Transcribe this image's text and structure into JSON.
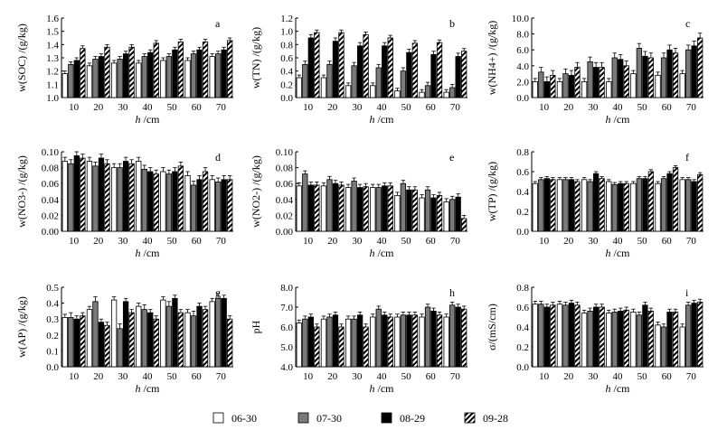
{
  "chart_data": {
    "type": "bar",
    "categories": [
      "10",
      "20",
      "30",
      "40",
      "50",
      "60",
      "70"
    ],
    "xlabel_var": "h",
    "xlabel_unit": "/cm",
    "series_names": [
      "06-30",
      "07-30",
      "08-29",
      "09-28"
    ],
    "panels": [
      {
        "letter": "a",
        "ylabel": "w(SOC) /(g/kg)",
        "ylim": [
          1.0,
          1.6
        ],
        "yticks": [
          "1.0",
          "1.1",
          "1.2",
          "1.3",
          "1.4",
          "1.5",
          "1.6"
        ],
        "series": [
          {
            "name": "06-30",
            "values": [
              1.18,
              1.24,
              1.26,
              1.26,
              1.28,
              1.28,
              1.31
            ]
          },
          {
            "name": "07-30",
            "values": [
              1.25,
              1.29,
              1.29,
              1.31,
              1.31,
              1.33,
              1.33
            ]
          },
          {
            "name": "08-29",
            "values": [
              1.28,
              1.31,
              1.33,
              1.34,
              1.36,
              1.36,
              1.36
            ]
          },
          {
            "name": "09-28",
            "values": [
              1.37,
              1.38,
              1.38,
              1.41,
              1.42,
              1.42,
              1.43
            ]
          }
        ],
        "errors": [
          0.02,
          0.02,
          0.02,
          0.02
        ]
      },
      {
        "letter": "b",
        "ylabel": "w(TN) /(g/kg)",
        "ylim": [
          0.0,
          1.2
        ],
        "yticks": [
          "0.0",
          "0.2",
          "0.4",
          "0.6",
          "0.8",
          "1.0",
          "1.2"
        ],
        "series": [
          {
            "name": "06-30",
            "values": [
              0.3,
              0.3,
              0.18,
              0.18,
              0.1,
              0.08,
              0.08
            ]
          },
          {
            "name": "07-30",
            "values": [
              0.5,
              0.5,
              0.48,
              0.45,
              0.4,
              0.18,
              0.15
            ]
          },
          {
            "name": "08-29",
            "values": [
              0.9,
              0.85,
              0.78,
              0.78,
              0.68,
              0.65,
              0.62
            ]
          },
          {
            "name": "09-28",
            "values": [
              0.98,
              0.98,
              0.95,
              0.9,
              0.82,
              0.83,
              0.7
            ]
          }
        ],
        "errors": [
          0.04,
          0.05,
          0.05,
          0.04
        ]
      },
      {
        "letter": "c",
        "ylabel": "w(NH4+) /(g/kg)",
        "ylim": [
          0.0,
          10.0
        ],
        "yticks": [
          "0.0",
          "2.0",
          "4.0",
          "6.0",
          "8.0",
          "10.0"
        ],
        "series": [
          {
            "name": "06-30",
            "values": [
              2.0,
              2.0,
              2.0,
              2.0,
              3.0,
              2.8,
              3.0
            ]
          },
          {
            "name": "07-30",
            "values": [
              3.2,
              3.0,
              4.5,
              5.0,
              6.2,
              5.0,
              6.0
            ]
          },
          {
            "name": "08-29",
            "values": [
              2.0,
              2.8,
              3.8,
              4.8,
              5.2,
              6.0,
              6.5
            ]
          },
          {
            "name": "09-28",
            "values": [
              2.8,
              3.8,
              3.8,
              4.0,
              5.0,
              5.6,
              7.5
            ]
          }
        ],
        "errors": [
          0.4,
          0.6,
          0.6,
          0.6
        ]
      },
      {
        "letter": "d",
        "ylabel": "w(NO3-) /(g/kg)",
        "ylim": [
          0.0,
          0.1
        ],
        "yticks": [
          "0.00",
          "0.02",
          "0.04",
          "0.06",
          "0.08",
          "0.10"
        ],
        "series": [
          {
            "name": "06-30",
            "values": [
              0.088,
              0.088,
              0.08,
              0.088,
              0.075,
              0.07,
              0.065
            ]
          },
          {
            "name": "07-30",
            "values": [
              0.085,
              0.082,
              0.08,
              0.078,
              0.072,
              0.058,
              0.062
            ]
          },
          {
            "name": "08-29",
            "values": [
              0.095,
              0.092,
              0.088,
              0.075,
              0.075,
              0.065,
              0.065
            ]
          },
          {
            "name": "09-28",
            "values": [
              0.092,
              0.085,
              0.085,
              0.072,
              0.082,
              0.075,
              0.065
            ]
          }
        ],
        "errors": [
          0.005,
          0.005,
          0.005,
          0.005
        ]
      },
      {
        "letter": "e",
        "ylabel": "w(NO2-) /(g/kg)",
        "ylim": [
          0.0,
          0.1
        ],
        "yticks": [
          "0.00",
          "0.02",
          "0.04",
          "0.06",
          "0.08",
          "0.10"
        ],
        "series": [
          {
            "name": "06-30",
            "values": [
              0.057,
              0.057,
              0.055,
              0.055,
              0.045,
              0.042,
              0.037
            ]
          },
          {
            "name": "07-30",
            "values": [
              0.072,
              0.065,
              0.063,
              0.055,
              0.06,
              0.052,
              0.04
            ]
          },
          {
            "name": "08-29",
            "values": [
              0.058,
              0.06,
              0.055,
              0.057,
              0.052,
              0.042,
              0.043
            ]
          },
          {
            "name": "09-28",
            "values": [
              0.058,
              0.058,
              0.056,
              0.057,
              0.052,
              0.045,
              0.016
            ]
          }
        ],
        "errors": [
          0.004,
          0.004,
          0.004,
          0.004
        ]
      },
      {
        "letter": "f",
        "ylabel": "w(TP) /(g/kg)",
        "ylim": [
          0.0,
          0.8
        ],
        "yticks": [
          "0.0",
          "0.2",
          "0.4",
          "0.6",
          "0.8"
        ],
        "series": [
          {
            "name": "06-30",
            "values": [
              0.48,
              0.52,
              0.52,
              0.5,
              0.48,
              0.48,
              0.52
            ]
          },
          {
            "name": "07-30",
            "values": [
              0.52,
              0.52,
              0.5,
              0.47,
              0.53,
              0.53,
              0.52
            ]
          },
          {
            "name": "08-29",
            "values": [
              0.53,
              0.52,
              0.58,
              0.48,
              0.53,
              0.58,
              0.5
            ]
          },
          {
            "name": "09-28",
            "values": [
              0.52,
              0.5,
              0.53,
              0.48,
              0.6,
              0.64,
              0.57
            ]
          }
        ],
        "errors": [
          0.02,
          0.02,
          0.02,
          0.02
        ]
      },
      {
        "letter": "g",
        "ylabel": "w(AP) /(g/kg)",
        "ylim": [
          0.0,
          0.5
        ],
        "yticks": [
          "0.0",
          "0.1",
          "0.2",
          "0.3",
          "0.4",
          "0.5"
        ],
        "series": [
          {
            "name": "06-30",
            "values": [
              0.31,
              0.36,
              0.42,
              0.38,
              0.42,
              0.34,
              0.41
            ]
          },
          {
            "name": "07-30",
            "values": [
              0.31,
              0.41,
              0.24,
              0.36,
              0.38,
              0.32,
              0.43
            ]
          },
          {
            "name": "08-29",
            "values": [
              0.3,
              0.28,
              0.41,
              0.34,
              0.43,
              0.38,
              0.43
            ]
          },
          {
            "name": "09-28",
            "values": [
              0.32,
              0.26,
              0.34,
              0.3,
              0.34,
              0.36,
              0.3
            ]
          }
        ],
        "errors": [
          0.02,
          0.03,
          0.02,
          0.02
        ]
      },
      {
        "letter": "h",
        "ylabel": "pH",
        "ylim": [
          4.0,
          8.0
        ],
        "yticks": [
          "4.0",
          "5.0",
          "6.0",
          "7.0",
          "8.0"
        ],
        "series": [
          {
            "name": "06-30",
            "values": [
              6.2,
              6.4,
              6.4,
              6.5,
              6.5,
              6.5,
              6.5
            ]
          },
          {
            "name": "07-30",
            "values": [
              6.4,
              6.5,
              6.4,
              6.9,
              6.6,
              7.0,
              7.1
            ]
          },
          {
            "name": "08-29",
            "values": [
              6.5,
              6.6,
              6.6,
              6.6,
              6.6,
              6.8,
              7.0
            ]
          },
          {
            "name": "09-28",
            "values": [
              6.0,
              6.0,
              6.0,
              6.5,
              6.6,
              6.6,
              6.9
            ]
          }
        ],
        "errors": [
          0.15,
          0.15,
          0.15,
          0.15
        ]
      },
      {
        "letter": "i",
        "ylabel": "σ/(mS/cm)",
        "ylim": [
          0.0,
          0.8
        ],
        "yticks": [
          "0.0",
          "0.2",
          "0.4",
          "0.6",
          "0.8"
        ],
        "series": [
          {
            "name": "06-30",
            "values": [
              0.63,
              0.63,
              0.54,
              0.54,
              0.55,
              0.42,
              0.4
            ]
          },
          {
            "name": "07-30",
            "values": [
              0.63,
              0.62,
              0.56,
              0.55,
              0.52,
              0.4,
              0.62
            ]
          },
          {
            "name": "08-29",
            "values": [
              0.6,
              0.64,
              0.6,
              0.56,
              0.62,
              0.55,
              0.64
            ]
          },
          {
            "name": "09-28",
            "values": [
              0.62,
              0.62,
              0.6,
              0.57,
              0.56,
              0.55,
              0.65
            ]
          }
        ],
        "errors": [
          0.03,
          0.03,
          0.03,
          0.03
        ]
      }
    ],
    "legend": {
      "position": "bottom",
      "items": [
        {
          "label": "06-30",
          "fill": "white"
        },
        {
          "label": "07-30",
          "fill": "gray"
        },
        {
          "label": "08-29",
          "fill": "black"
        },
        {
          "label": "09-28",
          "fill": "hatch"
        }
      ]
    }
  },
  "colors": {
    "gray": "#7a7a7a",
    "black": "#000000",
    "white": "#ffffff"
  }
}
